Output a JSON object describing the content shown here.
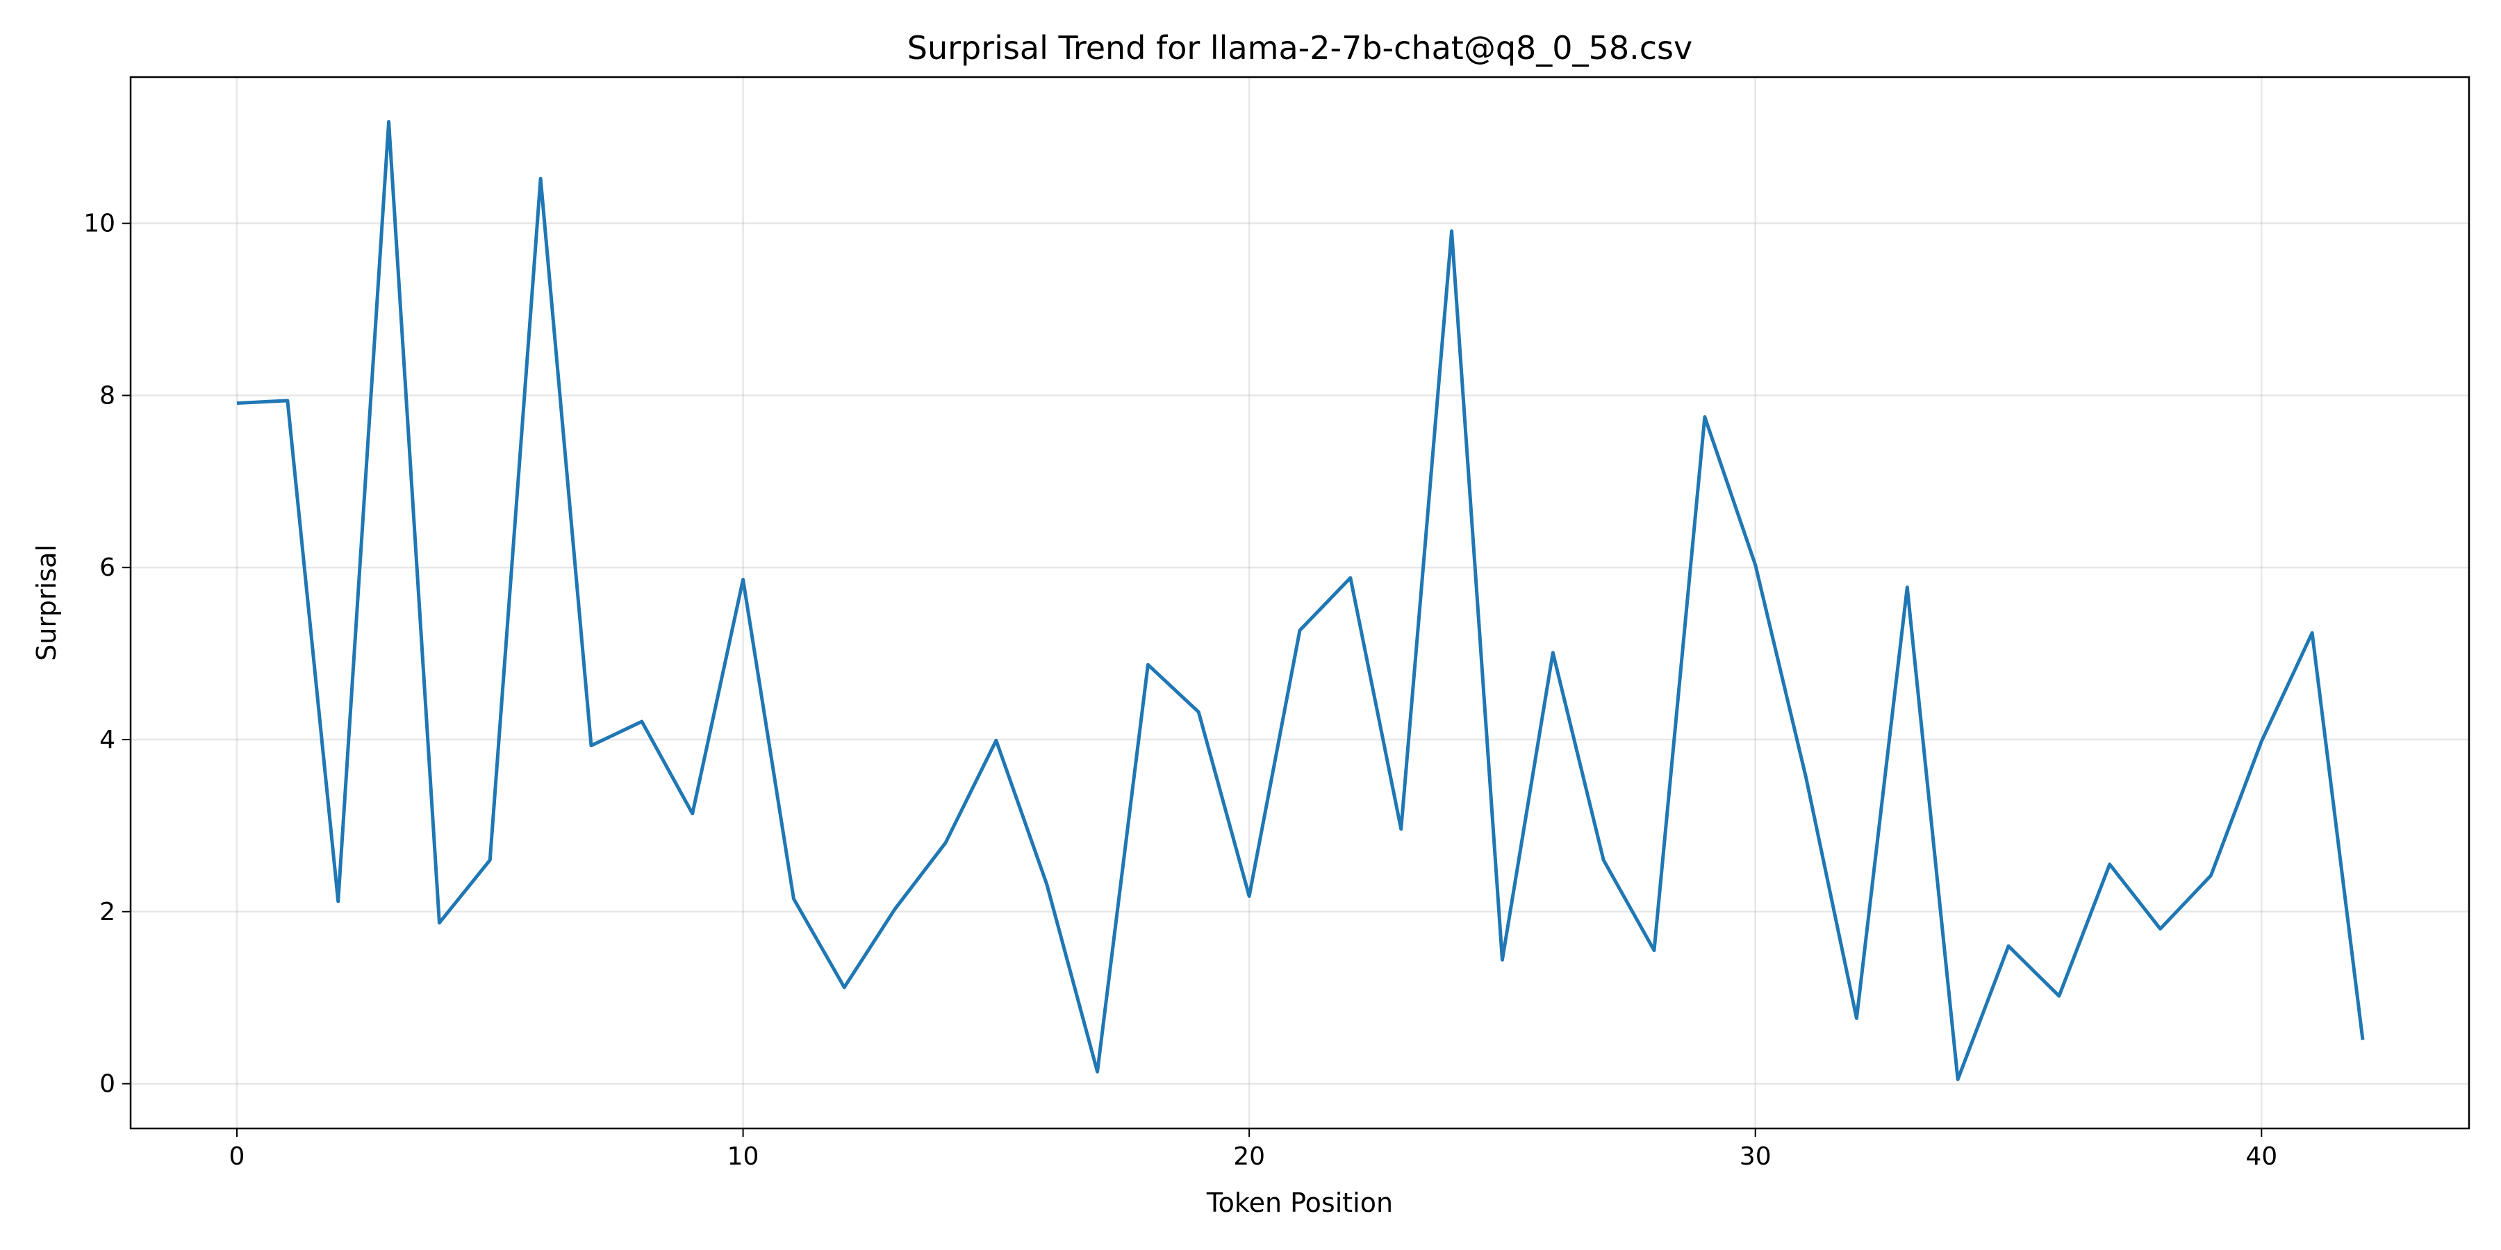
{
  "chart_data": {
    "type": "line",
    "title": "Surprisal Trend for llama-2-7b-chat@q8_0_58.csv",
    "xlabel": "Token Position",
    "ylabel": "Surprisal",
    "xlim": [
      -2.1,
      44.1
    ],
    "ylim": [
      -0.52,
      11.7
    ],
    "xticks": [
      0,
      10,
      20,
      30,
      40
    ],
    "yticks": [
      0,
      2,
      4,
      6,
      8,
      10
    ],
    "xtick_labels": [
      "0",
      "10",
      "20",
      "30",
      "40"
    ],
    "ytick_labels": [
      "0",
      "2",
      "4",
      "6",
      "8",
      "10"
    ],
    "grid": true,
    "series": [
      {
        "color": "#1f77b4",
        "x": [
          0,
          1,
          2,
          3,
          4,
          5,
          6,
          7,
          8,
          9,
          10,
          11,
          12,
          13,
          14,
          15,
          16,
          17,
          18,
          19,
          20,
          21,
          22,
          23,
          24,
          25,
          26,
          27,
          28,
          29,
          30,
          31,
          32,
          33,
          34,
          35,
          36,
          37,
          38,
          39,
          40,
          41,
          42
        ],
        "values": [
          7.91,
          7.94,
          2.12,
          11.18,
          1.87,
          2.6,
          10.52,
          3.93,
          4.21,
          3.14,
          5.86,
          2.15,
          1.12,
          2.03,
          2.8,
          3.99,
          2.32,
          0.14,
          4.87,
          4.32,
          2.18,
          5.27,
          5.88,
          2.96,
          9.91,
          1.44,
          5.01,
          2.6,
          1.55,
          7.75,
          6.03,
          3.56,
          0.76,
          5.77,
          0.05,
          1.6,
          1.02,
          2.55,
          1.8,
          2.42,
          3.98,
          5.24,
          0.51
        ]
      }
    ]
  }
}
